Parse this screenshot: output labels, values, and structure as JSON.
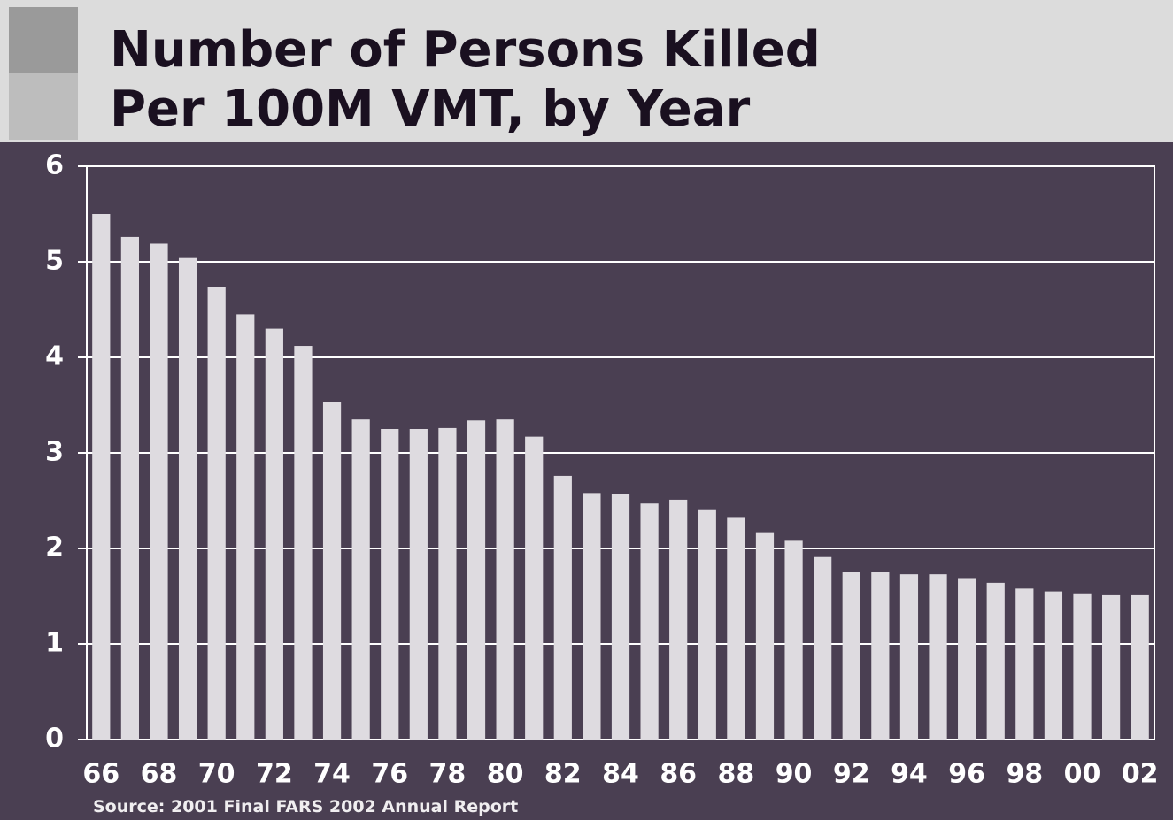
{
  "chart_data": {
    "type": "bar",
    "title": [
      "Number of Persons Killed",
      "Per 100M VMT, by Year"
    ],
    "source": "Source:  2001 Final FARS 2002 Annual Report",
    "categories": [
      "66",
      null,
      "68",
      null,
      "70",
      null,
      "72",
      null,
      "74",
      null,
      "76",
      null,
      "78",
      null,
      "80",
      null,
      "82",
      null,
      "84",
      null,
      "86",
      null,
      "88",
      null,
      "90",
      null,
      "92",
      null,
      "94",
      null,
      "96",
      null,
      "98",
      null,
      "00",
      null,
      "02"
    ],
    "values": [
      5.5,
      5.26,
      5.19,
      5.04,
      4.74,
      4.45,
      4.3,
      4.12,
      3.53,
      3.35,
      3.25,
      3.25,
      3.26,
      3.34,
      3.35,
      3.17,
      2.76,
      2.58,
      2.57,
      2.47,
      2.51,
      2.41,
      2.32,
      2.17,
      2.08,
      1.91,
      1.75,
      1.75,
      1.73,
      1.73,
      1.69,
      1.64,
      1.58,
      1.55,
      1.53,
      1.51,
      1.51
    ],
    "color": "#dedbe0",
    "ylim": [
      0,
      6
    ],
    "yticks": [
      0,
      1,
      2,
      3,
      4,
      5,
      6
    ],
    "grid": true
  }
}
